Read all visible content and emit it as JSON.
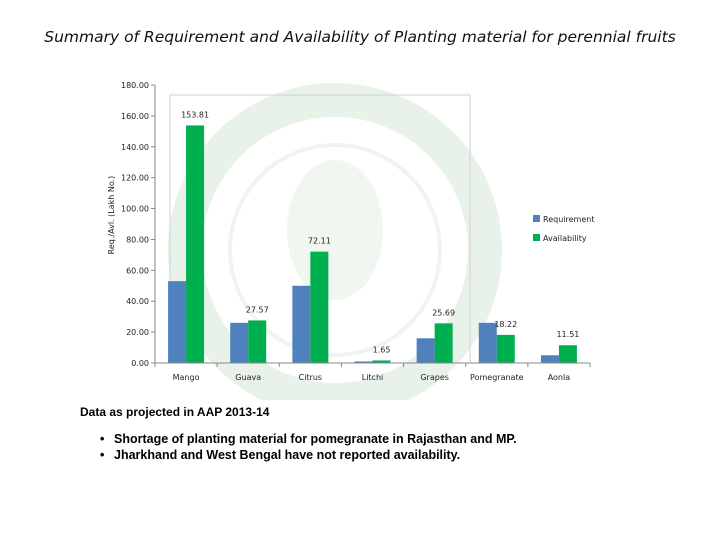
{
  "slide": {
    "title": "Summary of Requirement and Availability of Planting material for perennial fruits",
    "note": "Data as projected in AAP 2013-14",
    "bullets": [
      "Shortage of planting material for pomegranate in Rajasthan and MP.",
      "Jharkhand and West Bengal have not reported availability."
    ]
  },
  "chart_data": {
    "type": "bar",
    "title": "",
    "xlabel": "",
    "ylabel": "Req./Avl. (Lakh No.)",
    "ylim": [
      0,
      180
    ],
    "yticks": [
      "0.00",
      "20.00",
      "40.00",
      "60.00",
      "80.00",
      "100.00",
      "120.00",
      "140.00",
      "160.00",
      "180.00"
    ],
    "grid": false,
    "legend_position": "right",
    "categories": [
      "Mango",
      "Guava",
      "Citrus",
      "Litchi",
      "Grapes",
      "Pomegranate",
      "Aonla"
    ],
    "series": [
      {
        "name": "Requirement",
        "color": "#4f81bd",
        "values": [
          53,
          26,
          50,
          1,
          16,
          26,
          5
        ],
        "labels": [
          "",
          "",
          "",
          "",
          "",
          "",
          ""
        ]
      },
      {
        "name": "Availability",
        "color": "#00b050",
        "values": [
          153.81,
          27.57,
          72.11,
          1.65,
          25.69,
          18.22,
          11.51
        ],
        "labels": [
          "153.81",
          "27.57",
          "72.11",
          "1.65",
          "25.69",
          "18.22",
          "11.51"
        ]
      }
    ]
  }
}
